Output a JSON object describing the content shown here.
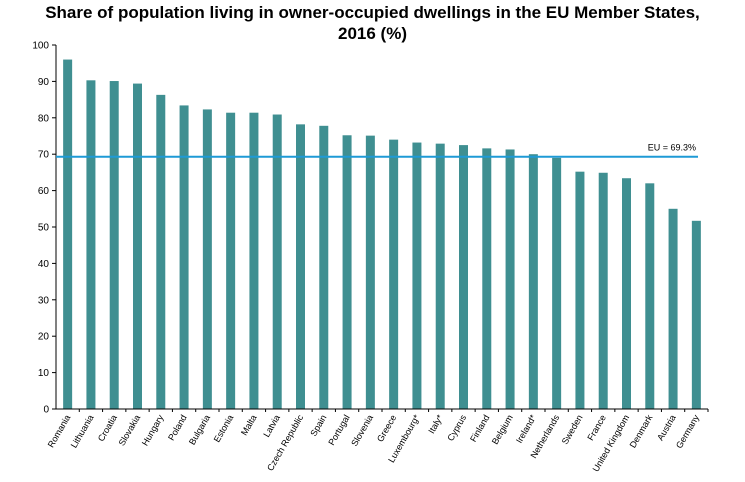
{
  "chart_data": {
    "type": "bar",
    "title_line1": "Share of population living in owner-occupied dwellings in the EU Member States,",
    "title_line2": "2016 (%)",
    "categories": [
      "Romania",
      "Lithuania",
      "Croatia",
      "Slovakia",
      "Hungary",
      "Poland",
      "Bulgaria",
      "Estonia",
      "Malta",
      "Latvia",
      "Czech Republic",
      "Spain",
      "Portugal",
      "Slovenia",
      "Greece",
      "Luxembourg*",
      "Italy*",
      "Cyprus",
      "Finland",
      "Belgium",
      "Ireland*",
      "Netherlands",
      "Sweden",
      "France",
      "United Kingdom",
      "Denmark",
      "Austria",
      "Germany"
    ],
    "values": [
      96.0,
      90.3,
      90.1,
      89.4,
      86.3,
      83.4,
      82.3,
      81.4,
      81.4,
      80.9,
      78.2,
      77.8,
      75.2,
      75.1,
      74.0,
      73.2,
      72.9,
      72.5,
      71.6,
      71.3,
      70.0,
      69.0,
      65.2,
      64.9,
      63.4,
      62.0,
      55.0,
      51.7
    ],
    "ylim": [
      0,
      100
    ],
    "yticks": [
      0,
      10,
      20,
      30,
      40,
      50,
      60,
      70,
      80,
      90,
      100
    ],
    "reference": {
      "value": 69.3,
      "label": "EU = 69.3%"
    },
    "grid": false,
    "legend": "none",
    "colors": {
      "bar": "#3f8f91",
      "reference_line": "#1e9ad6",
      "axis": "#000000"
    }
  }
}
